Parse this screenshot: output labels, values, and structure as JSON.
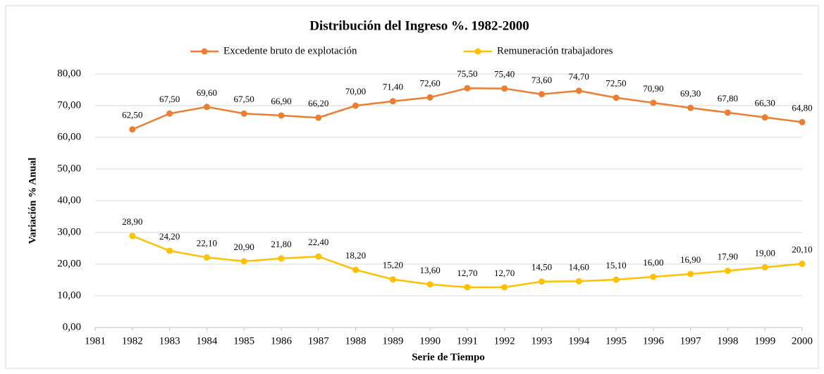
{
  "chart_data": {
    "type": "line",
    "title": "Distribución del Ingreso %. 1982-2000",
    "x_label": "Serie de Tiempo",
    "y_label": "Variación % Anual",
    "x": [
      1982,
      1983,
      1984,
      1985,
      1986,
      1987,
      1988,
      1989,
      1990,
      1991,
      1992,
      1993,
      1994,
      1995,
      1996,
      1997,
      1998,
      1999,
      2000
    ],
    "xlim": [
      1981,
      2000
    ],
    "xticks": [
      1981,
      1982,
      1983,
      1984,
      1985,
      1986,
      1987,
      1988,
      1989,
      1990,
      1991,
      1992,
      1993,
      1994,
      1995,
      1996,
      1997,
      1998,
      1999,
      2000
    ],
    "ylim": [
      0,
      80
    ],
    "yticks": [
      {
        "value": 0,
        "label": "0,00"
      },
      {
        "value": 10,
        "label": "10,00"
      },
      {
        "value": 20,
        "label": "20,00"
      },
      {
        "value": 30,
        "label": "30,00"
      },
      {
        "value": 40,
        "label": "40,00"
      },
      {
        "value": 50,
        "label": "50,00"
      },
      {
        "value": 60,
        "label": "60,00"
      },
      {
        "value": 70,
        "label": "70,00"
      },
      {
        "value": 80,
        "label": "80,00"
      }
    ],
    "grid": true,
    "legend": "top",
    "series": [
      {
        "name": "Excedente bruto de explotación",
        "color": "#ED7D31",
        "values": [
          62.5,
          67.5,
          69.6,
          67.5,
          66.9,
          66.2,
          70.0,
          71.4,
          72.6,
          75.5,
          75.4,
          73.6,
          74.7,
          72.5,
          70.9,
          69.3,
          67.8,
          66.3,
          64.8
        ],
        "value_labels": [
          "62,50",
          "67,50",
          "69,60",
          "67,50",
          "66,90",
          "66,20",
          "70,00",
          "71,40",
          "72,60",
          "75,50",
          "75,40",
          "73,60",
          "74,70",
          "72,50",
          "70,90",
          "69,30",
          "67,80",
          "66,30",
          "64,80"
        ]
      },
      {
        "name": "Remuneración trabajadores",
        "color": "#FFC000",
        "values": [
          28.9,
          24.2,
          22.1,
          20.9,
          21.8,
          22.4,
          18.2,
          15.2,
          13.6,
          12.7,
          12.7,
          14.5,
          14.6,
          15.1,
          16.0,
          16.9,
          17.9,
          19.0,
          20.1
        ],
        "value_labels": [
          "28,90",
          "24,20",
          "22,10",
          "20,90",
          "21,80",
          "22,40",
          "18,20",
          "15,20",
          "13,60",
          "12,70",
          "12,70",
          "14,50",
          "14,60",
          "15,10",
          "16,00",
          "16,90",
          "17,90",
          "19,00",
          "20,10"
        ]
      }
    ]
  }
}
